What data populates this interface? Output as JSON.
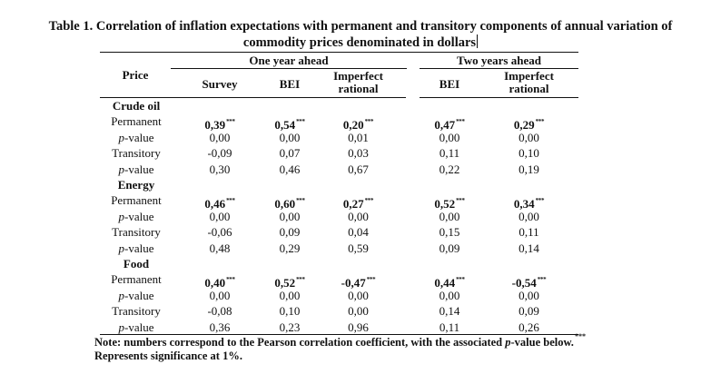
{
  "title": {
    "line1": "Table 1. Correlation of inflation expectations with permanent and transitory components of annual variation of",
    "line2": "commodity prices denominated in dollars"
  },
  "header": {
    "price": "Price",
    "group_one_year": "One year ahead",
    "group_two_years": "Two years ahead",
    "col_survey": "Survey",
    "col_bei_1": "BEI",
    "col_imperfect_1_line1": "Imperfect",
    "col_imperfect_1_line2": "rational",
    "col_bei_2": "BEI",
    "col_imperfect_2_line1": "Imperfect",
    "col_imperfect_2_line2": "rational"
  },
  "significance_marker": "***",
  "groups": [
    {
      "name": "Crude oil",
      "rows": [
        {
          "label": "Permanent",
          "italic_prefix": "",
          "bold": true,
          "values": [
            "0,39",
            "0,54",
            "0,20",
            "0,47",
            "0,29"
          ],
          "sig": true
        },
        {
          "label": "-value",
          "italic_prefix": "p",
          "bold": false,
          "values": [
            "0,00",
            "0,00",
            "0,01",
            "0,00",
            "0,00"
          ],
          "sig": false
        },
        {
          "label": "Transitory",
          "italic_prefix": "",
          "bold": false,
          "values": [
            "-0,09",
            "0,07",
            "0,03",
            "0,11",
            "0,10"
          ],
          "sig": false
        },
        {
          "label": "-value",
          "italic_prefix": "p",
          "bold": false,
          "values": [
            "0,30",
            "0,46",
            "0,67",
            "0,22",
            "0,19"
          ],
          "sig": false
        }
      ]
    },
    {
      "name": "Energy",
      "rows": [
        {
          "label": "Permanent",
          "italic_prefix": "",
          "bold": true,
          "values": [
            "0,46",
            "0,60",
            "0,27",
            "0,52",
            "0,34"
          ],
          "sig": true
        },
        {
          "label": "-value",
          "italic_prefix": "p",
          "bold": false,
          "values": [
            "0,00",
            "0,00",
            "0,00",
            "0,00",
            "0,00"
          ],
          "sig": false
        },
        {
          "label": "Transitory",
          "italic_prefix": "",
          "bold": false,
          "values": [
            "-0,06",
            "0,09",
            "0,04",
            "0,15",
            "0,11"
          ],
          "sig": false
        },
        {
          "label": "-value",
          "italic_prefix": "p",
          "bold": false,
          "values": [
            "0,48",
            "0,29",
            "0,59",
            "0,09",
            "0,14"
          ],
          "sig": false
        }
      ]
    },
    {
      "name": "Food",
      "rows": [
        {
          "label": "Permanent",
          "italic_prefix": "",
          "bold": true,
          "values": [
            "0,40",
            "0,52",
            "-0,47",
            "0,44",
            "-0,54"
          ],
          "sig": true
        },
        {
          "label": "-value",
          "italic_prefix": "p",
          "bold": false,
          "values": [
            "0,00",
            "0,00",
            "0,00",
            "0,00",
            "0,00"
          ],
          "sig": false
        },
        {
          "label": "Transitory",
          "italic_prefix": "",
          "bold": false,
          "values": [
            "-0,08",
            "0,10",
            "0,00",
            "0,14",
            "0,09"
          ],
          "sig": false
        },
        {
          "label": "-value",
          "italic_prefix": "p",
          "bold": false,
          "values": [
            "0,36",
            "0,23",
            "0,96",
            "0,11",
            "0,26"
          ],
          "sig": false
        }
      ]
    }
  ],
  "note": {
    "line1_pre": "Note: numbers correspond to the Pearson correlation coefficient, with the associated ",
    "line1_italic": "p",
    "line1_post": "-value below.",
    "line1_marker": "***",
    "line2": "Represents significance at 1%."
  }
}
